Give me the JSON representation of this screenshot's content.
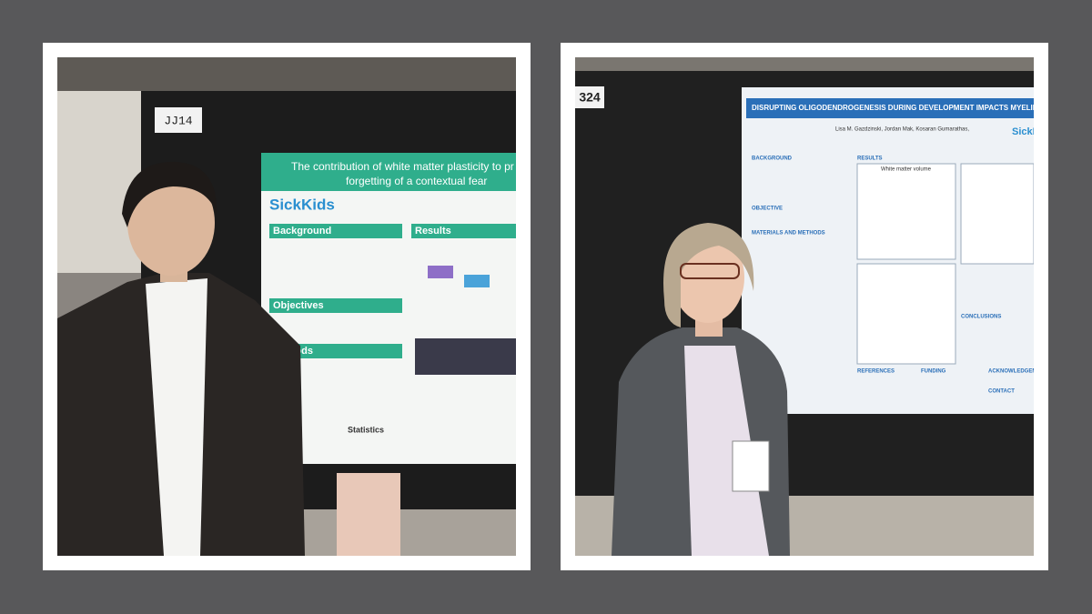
{
  "left_photo": {
    "booth": "JJ14",
    "poster": {
      "title_lines": [
        "The contribution of white matter plasticity to pr",
        "forgetting of a contextual fear"
      ],
      "logo": "SickKids",
      "sections": [
        "Background",
        "Results",
        "Objectives",
        "thods",
        "Statistics"
      ]
    }
  },
  "right_photo": {
    "booth": "324",
    "poster": {
      "title": "DISRUPTING OLIGODENDROGENESIS DURING DEVELOPMENT IMPACTS MYELIN &",
      "authors": "Lisa M. Gazdzinski, Jordan Mak, Kosaran Gumarathas,",
      "logo": "SickK",
      "sections": [
        "BACKGROUND",
        "OBJECTIVE",
        "MATERIALS AND METHODS",
        "RESULTS",
        "White matter volume",
        "CONCLUSIONS",
        "REFERENCES",
        "FUNDING",
        "ACKNOWLEDGEMENT",
        "CONTACT"
      ]
    }
  }
}
